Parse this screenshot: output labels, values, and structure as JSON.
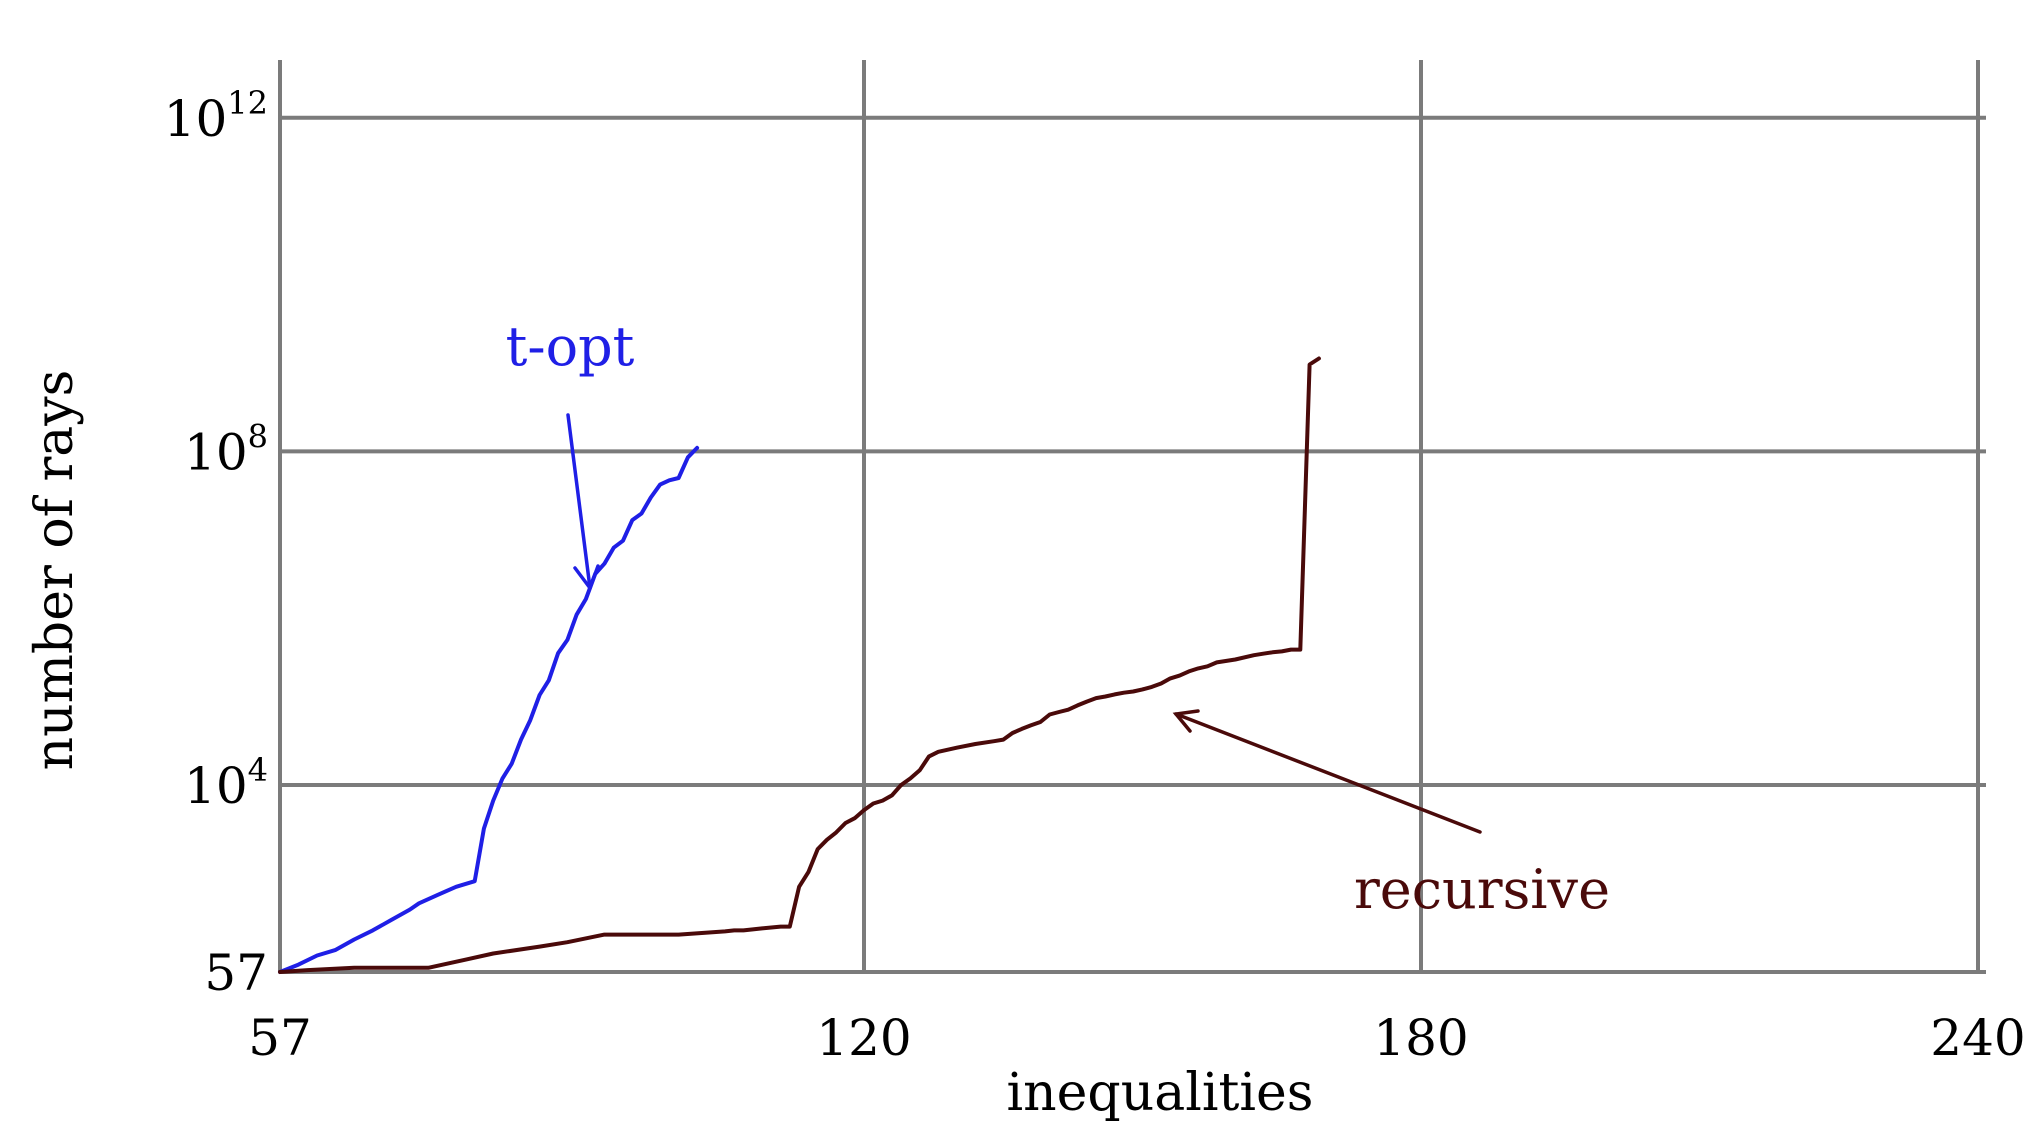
{
  "chart_data": {
    "type": "line",
    "xlabel": "inequalities",
    "ylabel": "number of rays",
    "x_ticks": [
      57,
      120,
      180,
      240
    ],
    "y_ticks": [
      {
        "value": 57,
        "base": "57",
        "exp": ""
      },
      {
        "value": 10000,
        "base": "10",
        "exp": "4"
      },
      {
        "value": 100000000,
        "base": "10",
        "exp": "8"
      },
      {
        "value": 1000000000000,
        "base": "10",
        "exp": "12"
      }
    ],
    "xlim": [
      57,
      240
    ],
    "y_scale": "log",
    "ylim": [
      57,
      10000000000000.0
    ],
    "grid": true,
    "colors": {
      "t-opt": "#1f1fe6",
      "recursive": "#4a0a0a",
      "grid": "#7b7b7b"
    },
    "series": [
      {
        "name": "t-opt",
        "x": [
          57,
          59,
          61,
          63,
          65,
          67,
          69,
          71,
          72,
          74,
          76,
          78,
          79,
          80,
          81,
          82,
          83,
          84,
          85,
          86,
          87,
          88,
          89,
          90,
          91,
          92,
          93,
          94,
          95,
          96,
          97,
          98,
          99,
          100,
          101,
          102
        ],
        "y": [
          57,
          70,
          90,
          105,
          140,
          180,
          240,
          320,
          380,
          480,
          600,
          700,
          3000,
          6500,
          12000,
          18000,
          35000,
          60000,
          120000,
          180000,
          380000,
          550000,
          1100000,
          1700000,
          3400000,
          4500000,
          7000000,
          8500000,
          15000000,
          18000000,
          28000000,
          40000000,
          45000000,
          48000000,
          85000000,
          110000000
        ]
      },
      {
        "name": "recursive",
        "x": [
          57,
          60,
          65,
          70,
          73,
          77,
          80,
          85,
          88,
          92,
          95,
          100,
          105,
          106,
          107,
          108,
          109,
          110,
          111,
          112,
          113,
          114,
          115,
          116,
          117,
          118,
          119,
          120,
          121,
          122,
          123,
          124,
          125,
          126,
          127,
          128,
          130,
          132,
          134,
          135,
          136,
          137,
          138,
          139,
          140,
          141,
          142,
          143,
          144,
          145,
          146,
          147,
          148,
          149,
          150,
          151,
          152,
          153,
          154,
          155,
          156,
          157,
          158,
          160,
          162,
          163,
          164,
          165,
          166,
          167,
          168,
          169
        ],
        "y": [
          57,
          60,
          64,
          64,
          64,
          80,
          95,
          115,
          130,
          160,
          160,
          160,
          175,
          180,
          180,
          185,
          190,
          195,
          200,
          200,
          600,
          900,
          1700,
          2200,
          2700,
          3500,
          4000,
          5000,
          6000,
          6500,
          7500,
          10000,
          12000,
          15000,
          22000,
          25000,
          28000,
          31000,
          33500,
          35000,
          42000,
          47000,
          52000,
          57000,
          70000,
          75000,
          80000,
          90000,
          100000,
          110000,
          115000,
          122000,
          128000,
          132000,
          140000,
          150000,
          165000,
          190000,
          205000,
          230000,
          250000,
          265000,
          295000,
          320000,
          360000,
          375000,
          390000,
          400000,
          420000,
          420000,
          1100000000,
          1300000000
        ]
      }
    ],
    "annotations": [
      {
        "text": "t-opt",
        "series": "t-opt"
      },
      {
        "text": "recursive",
        "series": "recursive"
      }
    ]
  }
}
